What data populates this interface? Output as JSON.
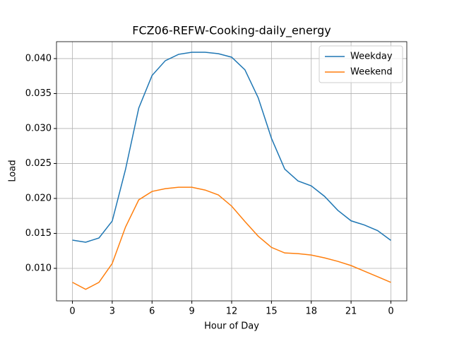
{
  "chart_data": {
    "type": "line",
    "title": "FCZ06-REFW-Cooking-daily_energy",
    "x_label": "Hour of Day",
    "y_label": "Load",
    "x": [
      0,
      1,
      2,
      3,
      4,
      5,
      6,
      7,
      8,
      9,
      10,
      11,
      12,
      13,
      14,
      15,
      16,
      17,
      18,
      19,
      20,
      21,
      22,
      23,
      24
    ],
    "series": [
      {
        "name": "Weekday",
        "color": "#1f77b4",
        "values": [
          0.01404,
          0.01374,
          0.01434,
          0.01677,
          0.02414,
          0.03293,
          0.03758,
          0.0397,
          0.04061,
          0.04091,
          0.0409,
          0.0407,
          0.0402,
          0.0384,
          0.0344,
          0.0286,
          0.0242,
          0.0225,
          0.0218,
          0.0203,
          0.0183,
          0.0168,
          0.0162,
          0.0154,
          0.014
        ]
      },
      {
        "name": "Weekend",
        "color": "#ff7f0e",
        "values": [
          0.008,
          0.007,
          0.008,
          0.0107,
          0.0159,
          0.0198,
          0.021,
          0.0214,
          0.0216,
          0.0216,
          0.0212,
          0.0205,
          0.0189,
          0.0167,
          0.0146,
          0.013,
          0.0122,
          0.0121,
          0.0119,
          0.0115,
          0.011,
          0.0104,
          0.0096,
          0.0088,
          0.008
        ]
      }
    ],
    "xlim": [
      -1.2,
      25.2
    ],
    "ylim": [
      0.00535,
      0.04242
    ],
    "xticks": [
      0,
      3,
      6,
      9,
      12,
      15,
      18,
      21,
      {
        "value": 24,
        "label": "0"
      }
    ],
    "yticks": [
      {
        "value": 0.01,
        "label": "0.010"
      },
      {
        "value": 0.015,
        "label": "0.015"
      },
      {
        "value": 0.02,
        "label": "0.020"
      },
      {
        "value": 0.025,
        "label": "0.025"
      },
      {
        "value": 0.03,
        "label": "0.030"
      },
      {
        "value": 0.035,
        "label": "0.035"
      },
      {
        "value": 0.04,
        "label": "0.040"
      }
    ],
    "grid": true,
    "legend": "upper right"
  }
}
